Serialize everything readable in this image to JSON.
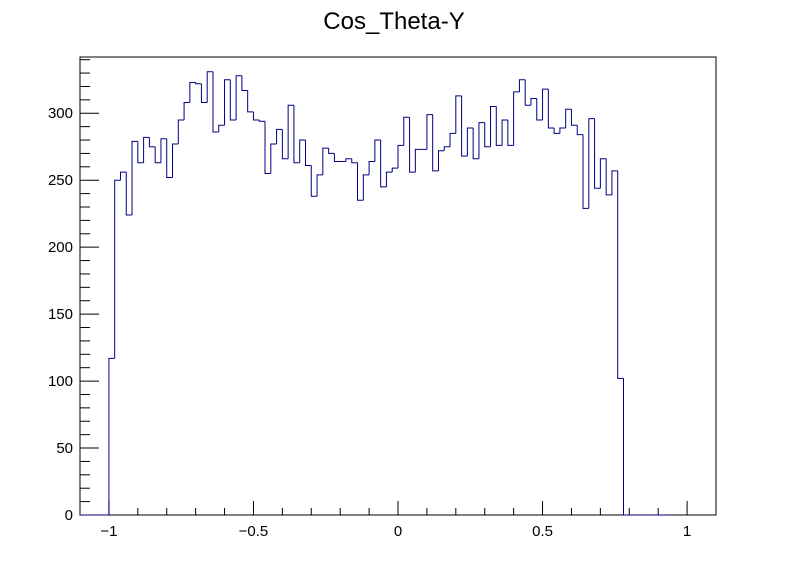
{
  "chart_data": {
    "type": "histogram",
    "title": "Cos_Theta-Y",
    "xlabel": "",
    "ylabel": "",
    "xlim": [
      -1.1,
      1.1
    ],
    "ylim": [
      0,
      342
    ],
    "grid": false,
    "line_color": "#000080",
    "x_ticks": [
      -1,
      -0.5,
      0,
      0.5,
      1
    ],
    "x_tick_labels": [
      "−1",
      "−0.5",
      "0",
      "0.5",
      "1"
    ],
    "y_ticks": [
      0,
      50,
      100,
      150,
      200,
      250,
      300
    ],
    "y_tick_labels": [
      "0",
      "50",
      "100",
      "150",
      "200",
      "250",
      "300"
    ],
    "bin_edges_start": -1.1,
    "bin_width": 0.02,
    "counts": [
      0,
      0,
      0,
      0,
      0,
      117,
      250,
      256,
      224,
      279,
      263,
      282,
      275,
      263,
      281,
      252,
      277,
      295,
      308,
      323,
      322,
      308,
      331,
      286,
      291,
      325,
      295,
      328,
      317,
      301,
      295,
      294,
      255,
      277,
      288,
      266,
      306,
      263,
      280,
      261,
      238,
      254,
      274,
      270,
      264,
      264,
      266,
      263,
      235,
      254,
      264,
      280,
      245,
      256,
      259,
      276,
      297,
      256,
      273,
      273,
      299,
      257,
      272,
      275,
      285,
      313,
      268,
      289,
      266,
      293,
      275,
      305,
      276,
      295,
      276,
      316,
      325,
      306,
      311,
      295,
      318,
      289,
      285,
      289,
      303,
      291,
      284,
      229,
      296,
      244,
      266,
      239,
      257,
      102,
      0,
      0,
      0,
      0,
      0,
      0,
      0,
      0
    ]
  }
}
